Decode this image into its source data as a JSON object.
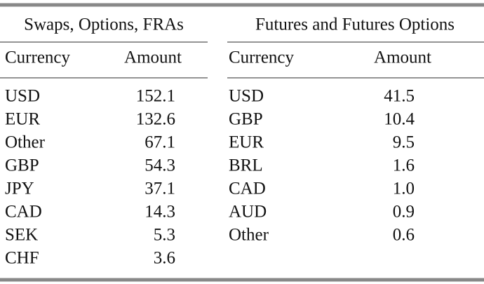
{
  "tables": [
    {
      "title": "Swaps, Options, FRAs",
      "columns": [
        "Currency",
        "Amount"
      ],
      "rows": [
        [
          "USD",
          "152.1"
        ],
        [
          "EUR",
          "132.6"
        ],
        [
          "Other",
          "67.1"
        ],
        [
          "GBP",
          "54.3"
        ],
        [
          "JPY",
          "37.1"
        ],
        [
          "CAD",
          "14.3"
        ],
        [
          "SEK",
          "5.3"
        ],
        [
          "CHF",
          "3.6"
        ]
      ]
    },
    {
      "title": "Futures and Futures Options",
      "columns": [
        "Currency",
        "Amount"
      ],
      "rows": [
        [
          "USD",
          "41.5"
        ],
        [
          "GBP",
          "10.4"
        ],
        [
          "EUR",
          "9.5"
        ],
        [
          "BRL",
          "1.6"
        ],
        [
          "CAD",
          "1.0"
        ],
        [
          "AUD",
          "0.9"
        ],
        [
          "Other",
          "0.6"
        ]
      ]
    }
  ]
}
